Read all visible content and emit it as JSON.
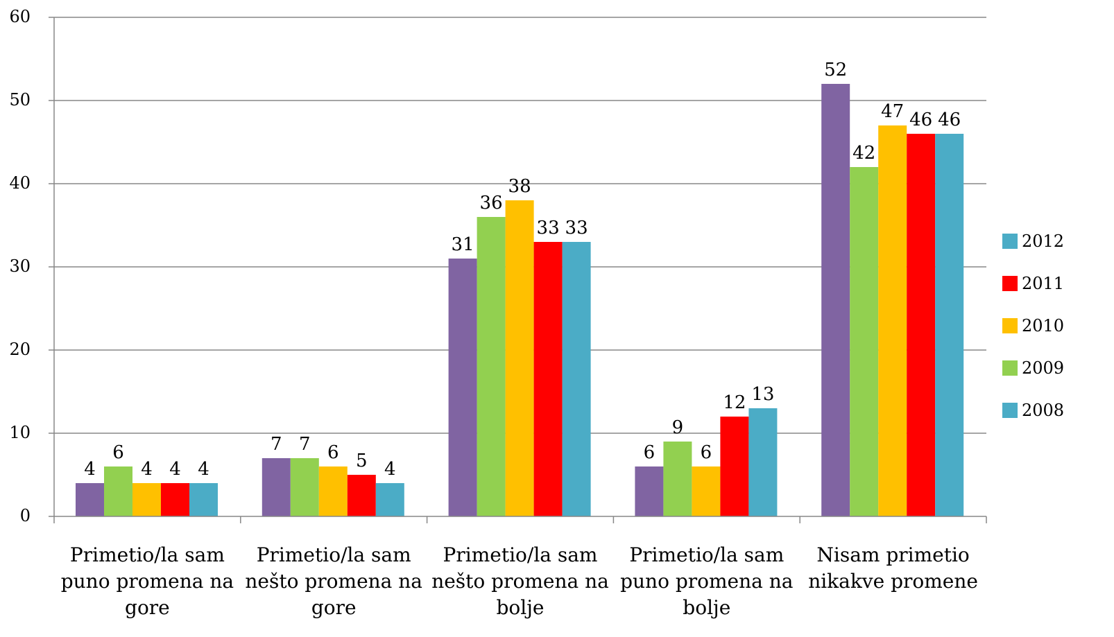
{
  "chart_data": {
    "type": "bar",
    "title": "",
    "xlabel": "",
    "ylabel": "",
    "ylim": [
      0,
      60
    ],
    "yticks": [
      0,
      10,
      20,
      30,
      40,
      50,
      60
    ],
    "grid": true,
    "legend_position": "right",
    "categories": [
      [
        "Primetio/la sam",
        "puno promena na",
        "gore"
      ],
      [
        "Primetio/la sam",
        "nešto promena na",
        "gore"
      ],
      [
        "Primetio/la sam",
        "nešto promena na",
        "bolje"
      ],
      [
        "Primetio/la sam",
        "puno promena na",
        "bolje"
      ],
      [
        "Nisam primetio",
        "nikakve promene"
      ]
    ],
    "bar_colors": [
      "#8064A2",
      "#92D050",
      "#FFC000",
      "#FF0000",
      "#4BACC6"
    ],
    "bar_values": [
      [
        4,
        6,
        4,
        4,
        4
      ],
      [
        7,
        7,
        6,
        5,
        4
      ],
      [
        31,
        36,
        38,
        33,
        33
      ],
      [
        6,
        9,
        6,
        12,
        13
      ],
      [
        52,
        42,
        47,
        46,
        46
      ]
    ],
    "legend": [
      {
        "name": "2012",
        "color": "#4BACC6"
      },
      {
        "name": "2011",
        "color": "#FF0000"
      },
      {
        "name": "2010",
        "color": "#FFC000"
      },
      {
        "name": "2009",
        "color": "#92D050"
      },
      {
        "name": "2008",
        "color": "#4BACC6"
      }
    ]
  }
}
